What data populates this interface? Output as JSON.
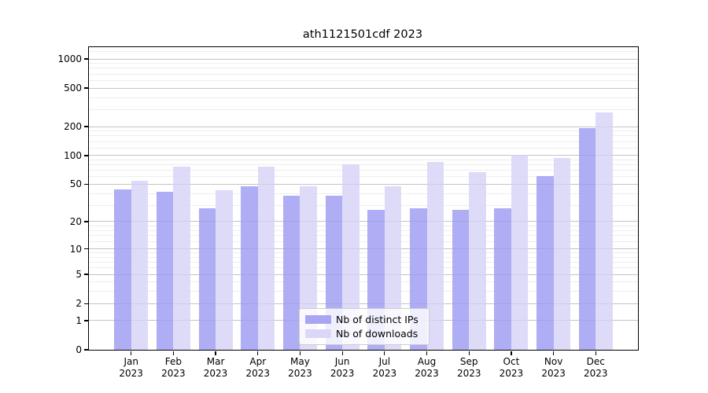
{
  "chart_data": {
    "type": "bar",
    "title": "ath1121501cdf 2023",
    "categories": [
      "Jan",
      "Feb",
      "Mar",
      "Apr",
      "May",
      "Jun",
      "Jul",
      "Aug",
      "Sep",
      "Oct",
      "Nov",
      "Dec"
    ],
    "category_year": "2023",
    "series": [
      {
        "name": "Nb of distinct IPs",
        "color": "#a8a6f3",
        "values": [
          44,
          42,
          28,
          48,
          38,
          38,
          27,
          28,
          27,
          28,
          61,
          193
        ]
      },
      {
        "name": "Nb of downloads",
        "color": "#dbd8f7",
        "values": [
          54,
          76,
          43,
          77,
          48,
          81,
          48,
          86,
          67,
          101,
          94,
          278
        ]
      }
    ],
    "y_scale": "log10(1+v)",
    "y_ticks": [
      0,
      1,
      2,
      5,
      10,
      20,
      50,
      100,
      200,
      500,
      1000
    ],
    "y_minor_gridlines": [
      3,
      4,
      6,
      7,
      8,
      9,
      12,
      14,
      16,
      18,
      30,
      40,
      60,
      70,
      80,
      90,
      120,
      140,
      160,
      180,
      300,
      400,
      600,
      700,
      800,
      900,
      1200
    ],
    "ylim": [
      0,
      1330
    ],
    "xlabel": "",
    "ylabel": "",
    "grid": true,
    "legend_position": "lower center",
    "major_grid_color": "#cdcdcd",
    "minor_grid_color": "#ededed"
  }
}
